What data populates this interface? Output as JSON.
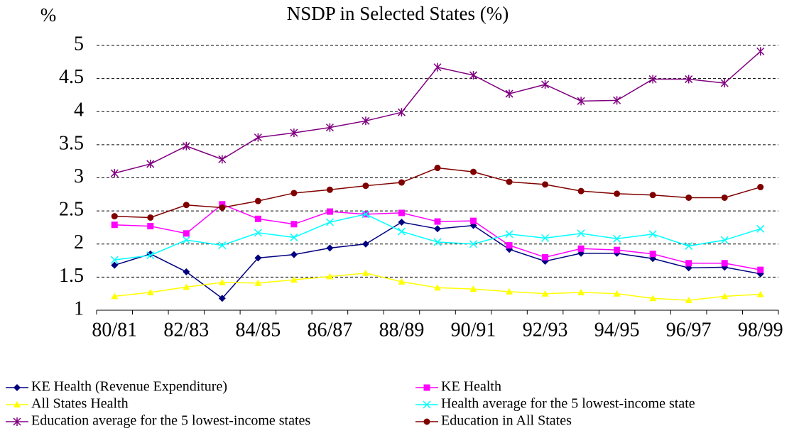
{
  "chart_data": {
    "type": "line",
    "title": "NSDP in Selected States (%)",
    "y_label": "%",
    "categories": [
      "80/81",
      null,
      "82/83",
      null,
      "84/85",
      null,
      "86/87",
      null,
      "88/89",
      null,
      "90/91",
      null,
      "92/93",
      null,
      "94/95",
      null,
      "96/97",
      null,
      "98/99"
    ],
    "ylim": [
      1,
      5
    ],
    "yticks": [
      1,
      1.5,
      2,
      2.5,
      3,
      3.5,
      4,
      4.5,
      5
    ],
    "grid": true,
    "series": [
      {
        "name": "KE Health (Revenue Expenditure)",
        "color": "#000080",
        "marker": "diamond",
        "values": [
          1.68,
          1.85,
          1.58,
          1.18,
          1.79,
          1.84,
          1.94,
          2.0,
          2.33,
          2.23,
          2.28,
          1.92,
          1.74,
          1.86,
          1.86,
          1.78,
          1.64,
          1.65,
          1.55
        ]
      },
      {
        "name": "KE Health",
        "color": "#ff00ff",
        "marker": "square",
        "values": [
          2.29,
          2.27,
          2.16,
          2.6,
          2.38,
          2.3,
          2.49,
          2.45,
          2.47,
          2.34,
          2.35,
          1.98,
          1.8,
          1.93,
          1.91,
          1.85,
          1.71,
          1.71,
          1.61
        ]
      },
      {
        "name": "All States Health",
        "color": "#ffff00",
        "marker": "triangle",
        "values": [
          1.21,
          1.27,
          1.35,
          1.42,
          1.41,
          1.46,
          1.51,
          1.56,
          1.43,
          1.34,
          1.32,
          1.28,
          1.25,
          1.27,
          1.25,
          1.18,
          1.15,
          1.21,
          1.24
        ]
      },
      {
        "name": "Health average for the 5 lowest-income state",
        "color": "#00ffff",
        "marker": "x",
        "values": [
          1.76,
          1.83,
          2.06,
          1.98,
          2.17,
          2.1,
          2.33,
          2.45,
          2.19,
          2.03,
          2.0,
          2.15,
          2.09,
          2.16,
          2.08,
          2.15,
          1.97,
          2.06,
          2.23
        ]
      },
      {
        "name": "Education average for the 5 lowest-income states",
        "color": "#800080",
        "marker": "star",
        "values": [
          3.07,
          3.21,
          3.48,
          3.28,
          3.61,
          3.68,
          3.76,
          3.86,
          3.99,
          4.67,
          4.55,
          4.27,
          4.41,
          4.16,
          4.17,
          4.49,
          4.49,
          4.43,
          4.91
        ]
      },
      {
        "name": "Education in All States",
        "color": "#800000",
        "marker": "circle",
        "values": [
          2.42,
          2.4,
          2.59,
          2.55,
          2.65,
          2.77,
          2.82,
          2.88,
          2.93,
          3.15,
          3.09,
          2.94,
          2.9,
          2.8,
          2.76,
          2.74,
          2.7,
          2.7,
          2.86
        ]
      }
    ]
  }
}
